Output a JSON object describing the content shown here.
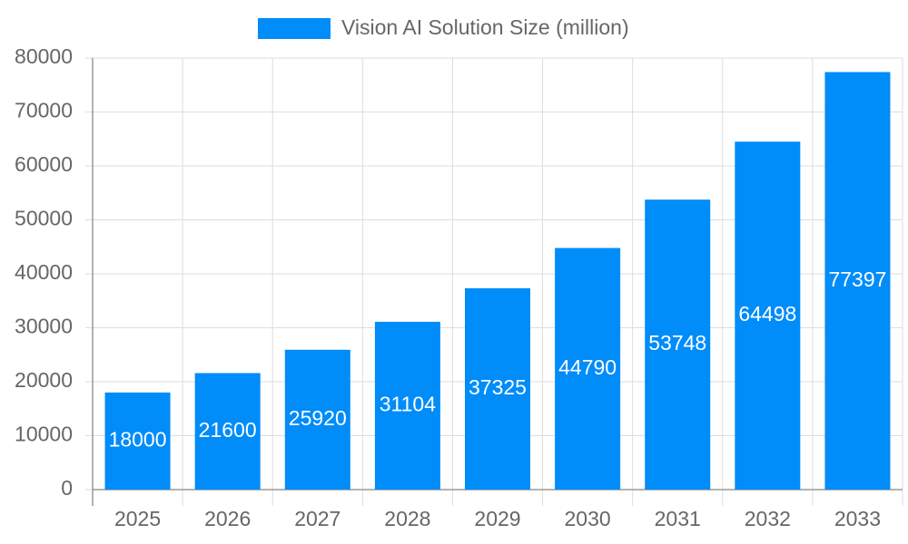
{
  "chart_data": {
    "type": "bar",
    "legend": "Vision AI Solution Size (million)",
    "categories": [
      "2025",
      "2026",
      "2027",
      "2028",
      "2029",
      "2030",
      "2031",
      "2032",
      "2033"
    ],
    "values": [
      18000,
      21600,
      25920,
      31104,
      37325,
      44790,
      53748,
      64498,
      77397
    ],
    "color": "#008cf9",
    "ylim": [
      0,
      80000
    ],
    "yticks": [
      0,
      10000,
      20000,
      30000,
      40000,
      50000,
      60000,
      70000,
      80000
    ],
    "grid": true
  }
}
